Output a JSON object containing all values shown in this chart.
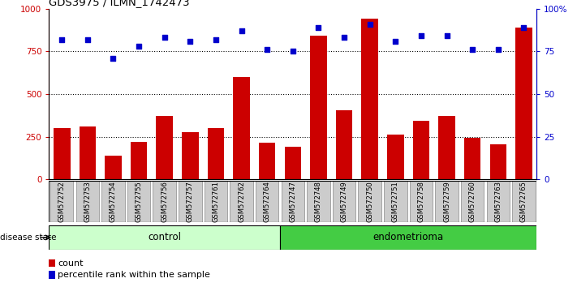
{
  "title": "GDS3975 / ILMN_1742473",
  "samples": [
    "GSM572752",
    "GSM572753",
    "GSM572754",
    "GSM572755",
    "GSM572756",
    "GSM572757",
    "GSM572761",
    "GSM572762",
    "GSM572764",
    "GSM572747",
    "GSM572748",
    "GSM572749",
    "GSM572750",
    "GSM572751",
    "GSM572758",
    "GSM572759",
    "GSM572760",
    "GSM572763",
    "GSM572765"
  ],
  "counts": [
    300,
    310,
    140,
    220,
    370,
    275,
    300,
    600,
    215,
    190,
    840,
    405,
    940,
    260,
    345,
    370,
    245,
    205,
    890
  ],
  "percentiles": [
    82,
    82,
    71,
    78,
    83,
    81,
    82,
    87,
    76,
    75,
    89,
    83,
    91,
    81,
    84,
    84,
    76,
    76,
    89
  ],
  "control_count": 9,
  "endometrioma_count": 10,
  "control_label": "control",
  "endometrioma_label": "endometrioma",
  "disease_state_label": "disease state",
  "bar_color": "#cc0000",
  "dot_color": "#0000cc",
  "ylim_left": [
    0,
    1000
  ],
  "ylim_right": [
    0,
    100
  ],
  "yticks_left": [
    0,
    250,
    500,
    750,
    1000
  ],
  "ytick_labels_left": [
    "0",
    "250",
    "500",
    "750",
    "1000"
  ],
  "yticks_right": [
    0,
    25,
    50,
    75,
    100
  ],
  "ytick_labels_right": [
    "0",
    "25",
    "50",
    "75",
    "100%"
  ],
  "grid_values": [
    250,
    500,
    750
  ],
  "control_bg": "#ccffcc",
  "endometrioma_bg": "#44cc44",
  "xlabel_bg": "#cccccc",
  "legend_count_label": "count",
  "legend_pct_label": "percentile rank within the sample"
}
